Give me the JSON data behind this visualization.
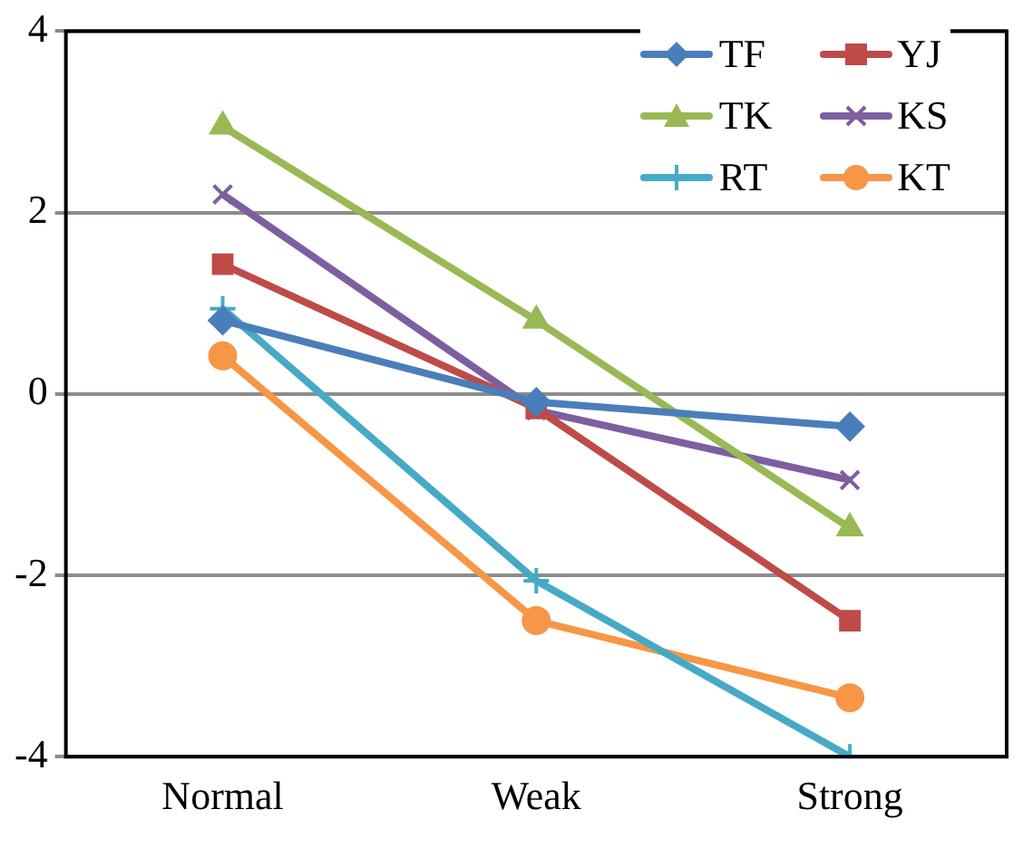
{
  "chart_data": {
    "type": "line",
    "categories": [
      "Normal",
      "Weak",
      "Strong"
    ],
    "series": [
      {
        "name": "TF",
        "color": "#4a7ebb",
        "marker": "diamond",
        "values": [
          0.81,
          -0.09,
          -0.36
        ]
      },
      {
        "name": "YJ",
        "color": "#be4b48",
        "marker": "square",
        "values": [
          1.43,
          -0.16,
          -2.5
        ]
      },
      {
        "name": "TK",
        "color": "#98b954",
        "marker": "triangle",
        "values": [
          2.95,
          0.81,
          -1.48
        ]
      },
      {
        "name": "KS",
        "color": "#7d5fa0",
        "marker": "x",
        "values": [
          2.2,
          -0.18,
          -0.95
        ]
      },
      {
        "name": "RT",
        "color": "#46aac5",
        "marker": "cross",
        "values": [
          0.94,
          -2.06,
          -4.0
        ]
      },
      {
        "name": "KT",
        "color": "#f79646",
        "marker": "circle",
        "values": [
          0.42,
          -2.5,
          -3.35
        ]
      }
    ],
    "ylim": [
      -4,
      4
    ],
    "yticks": [
      -4,
      -2,
      0,
      2,
      4
    ],
    "grid": "y",
    "legend": "top right",
    "line_style": "solid"
  }
}
